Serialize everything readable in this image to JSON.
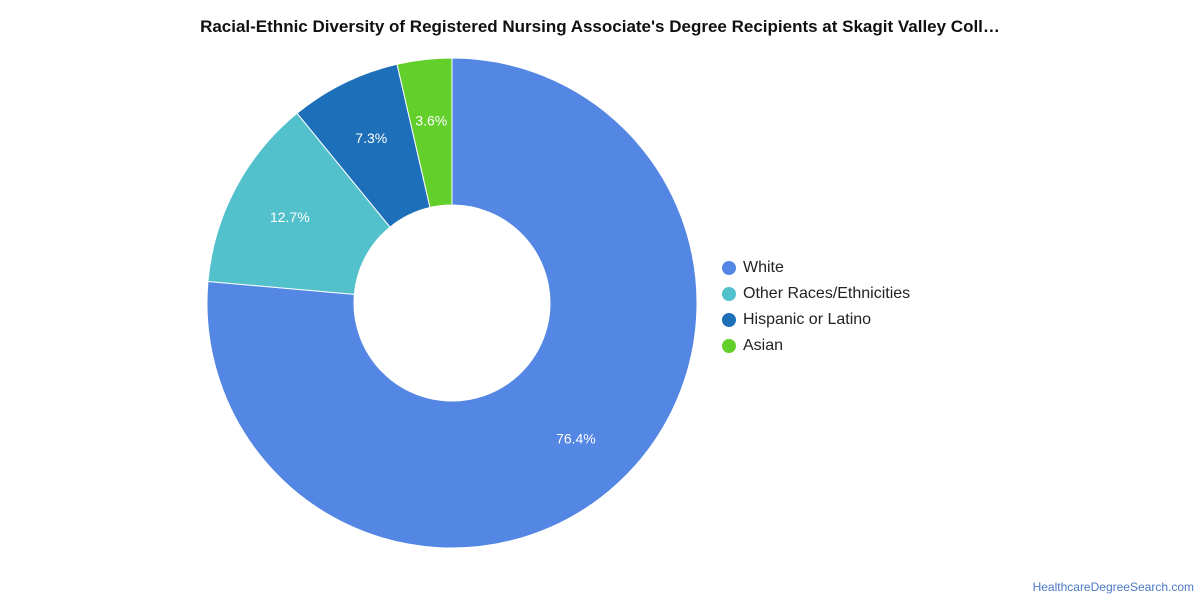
{
  "chart_data": {
    "type": "pie",
    "title": "Racial-Ethnic Diversity of Registered Nursing Associate's Degree Recipients at Skagit Valley Coll…",
    "categories": [
      "White",
      "Other Races/Ethnicities",
      "Hispanic or Latino",
      "Asian"
    ],
    "values": [
      76.4,
      12.7,
      7.3,
      3.6
    ],
    "labels": [
      "76.4%",
      "12.7%",
      "7.3%",
      "3.6%"
    ],
    "colors": [
      "#5486e3",
      "#52c1cc",
      "#1e6fba",
      "#63cf2a"
    ],
    "legend_position": "right"
  },
  "footer": {
    "source": "HealthcareDegreeSearch.com"
  }
}
